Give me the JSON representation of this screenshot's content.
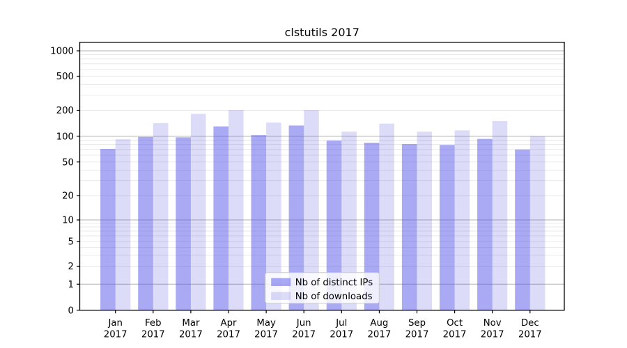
{
  "window": {
    "background_color": "#ffffff"
  },
  "chart_data": {
    "type": "bar",
    "title": "clstutils 2017",
    "categories": [
      "Jan",
      "Feb",
      "Mar",
      "Apr",
      "May",
      "Jun",
      "Jul",
      "Aug",
      "Sep",
      "Oct",
      "Nov",
      "Dec"
    ],
    "category_sublabel": "2017",
    "series": [
      {
        "name": "Nb of distinct IPs",
        "color": "rgba(83,83,233,0.5)",
        "values": [
          71,
          98,
          97,
          130,
          103,
          133,
          89,
          84,
          81,
          79,
          93,
          70
        ]
      },
      {
        "name": "Nb of downloads",
        "color": "rgba(80,80,220,0.2)",
        "values": [
          92,
          142,
          182,
          202,
          144,
          202,
          113,
          140,
          113,
          117,
          150,
          100
        ]
      }
    ],
    "xlabel": "",
    "ylabel": "",
    "yscale": "symlog",
    "y_ticks": [
      0,
      1,
      2,
      5,
      10,
      20,
      50,
      100,
      200,
      500,
      1000
    ],
    "ylim": [
      0,
      1270
    ],
    "grid": "horizontal major+minor",
    "legend": {
      "position": "lower-center",
      "labels": [
        "Nb of distinct IPs",
        "Nb of downloads"
      ]
    },
    "colors": {
      "axis_spine": "#000000",
      "major_gridline": "#b0b0b0",
      "minor_gridline": "#e9e9e9",
      "legend_border": "#cccccc",
      "legend_background": "rgba(255,255,255,0.8)",
      "text": "#000000"
    }
  }
}
